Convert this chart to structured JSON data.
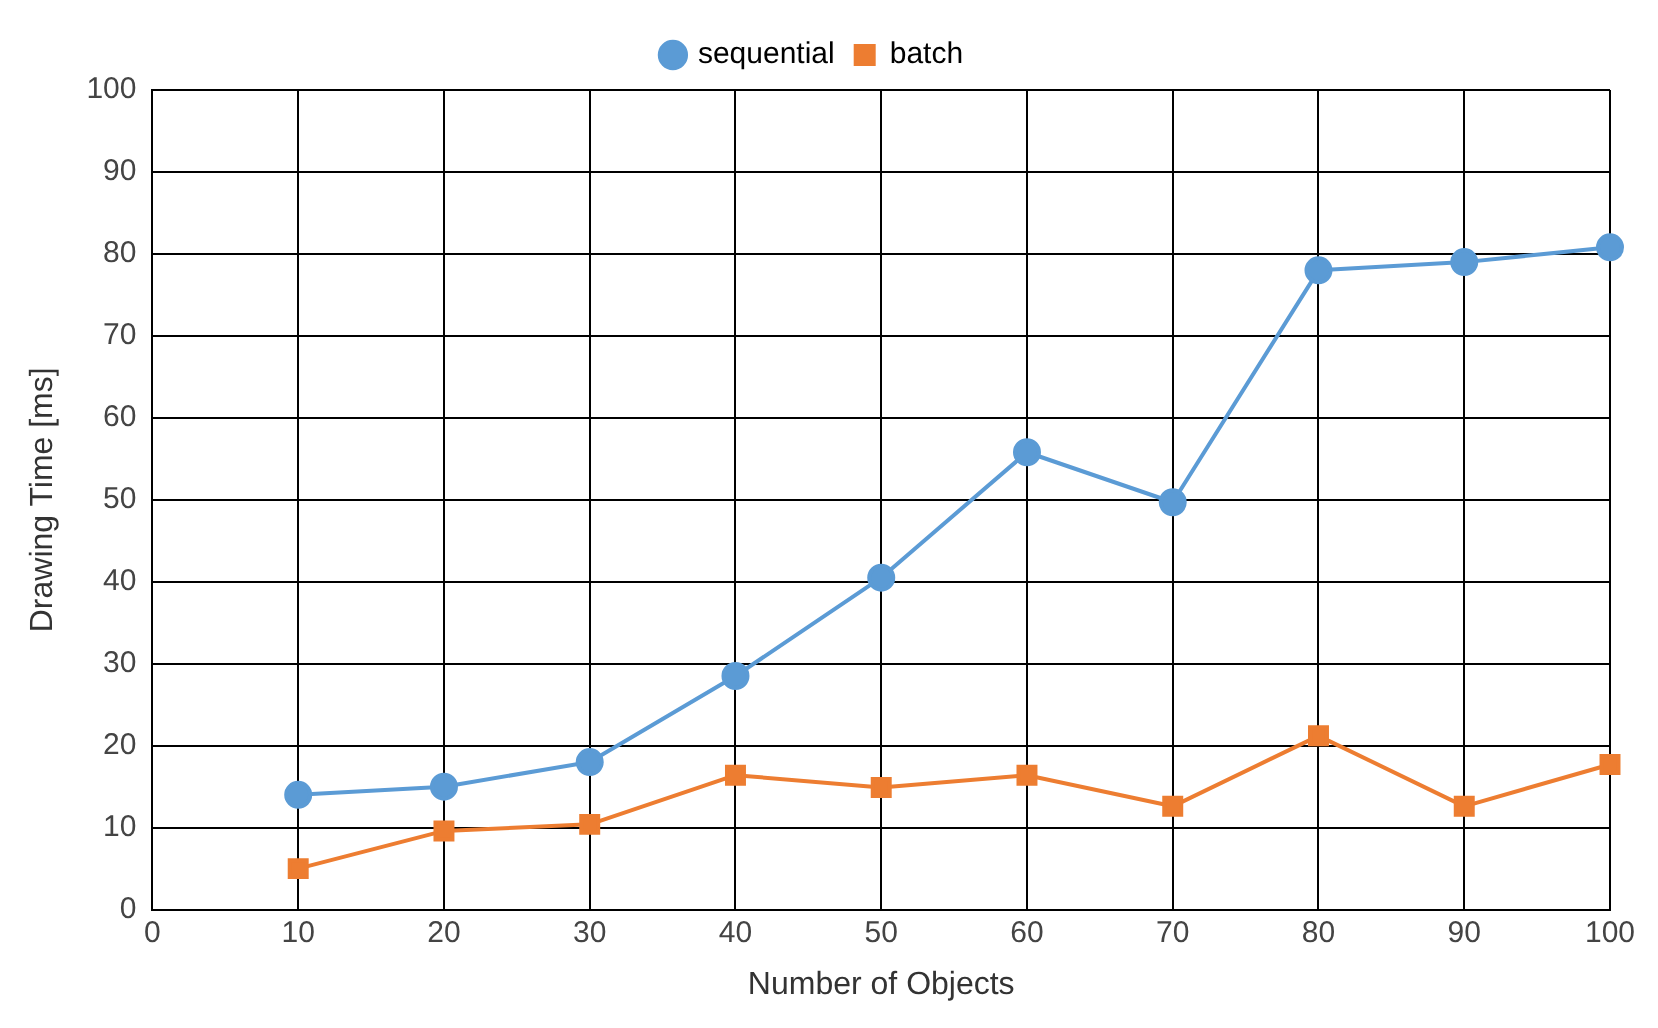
{
  "chart_data": {
    "type": "line",
    "xlabel": "Number of Objects",
    "ylabel": "Drawing Time [ms]",
    "x": [
      10,
      20,
      30,
      40,
      50,
      60,
      70,
      80,
      90,
      100
    ],
    "series": [
      {
        "name": "sequential",
        "color": "#5b9bd5",
        "marker": "circle",
        "values": [
          14,
          15,
          18,
          28.5,
          40.5,
          55.8,
          49.7,
          78,
          79,
          80.8
        ]
      },
      {
        "name": "batch",
        "color": "#ed7d31",
        "marker": "square",
        "values": [
          5,
          9.6,
          10.4,
          16.4,
          14.9,
          16.4,
          12.6,
          21.2,
          12.6,
          17.7
        ]
      }
    ],
    "xlim": [
      0,
      100
    ],
    "xticks": [
      0,
      10,
      20,
      30,
      40,
      50,
      60,
      70,
      80,
      90,
      100
    ],
    "ylim": [
      0,
      100
    ],
    "yticks": [
      0,
      10,
      20,
      30,
      40,
      50,
      60,
      70,
      80,
      90,
      100
    ],
    "grid": true,
    "legend": "top",
    "line_style": "solid"
  }
}
